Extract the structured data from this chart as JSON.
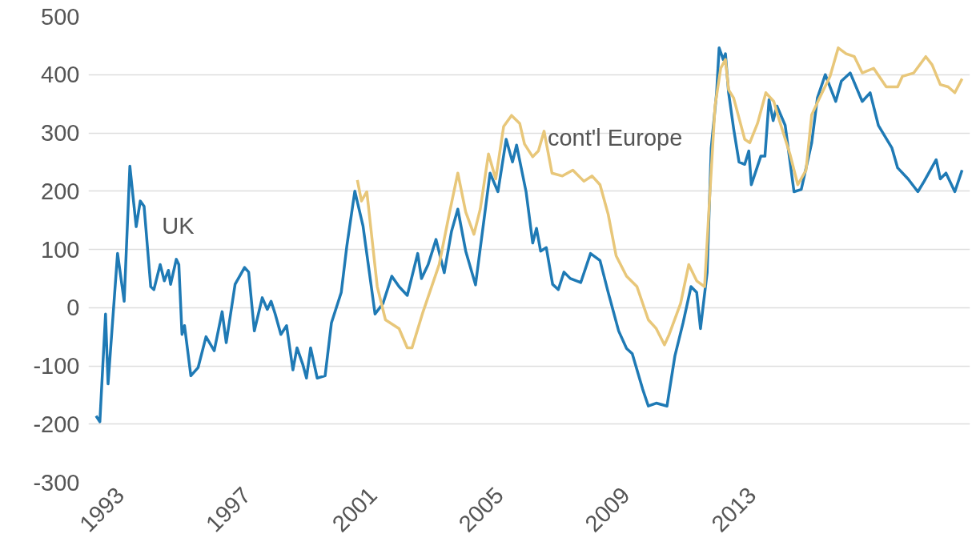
{
  "chart_data": {
    "type": "line",
    "xlim": [
      1992.0,
      2019.9
    ],
    "ylim": [
      -300,
      500
    ],
    "xticks": [
      1993,
      1997,
      2001,
      2005,
      2009,
      2013
    ],
    "yticks": [
      -300,
      -200,
      -100,
      0,
      100,
      200,
      300,
      400,
      500
    ],
    "grid": "y",
    "marker": "none",
    "line_style": "solid",
    "series": [
      {
        "name": "UK",
        "color": "#1f7ab5",
        "x": [
          1992.24,
          1992.36,
          1992.54,
          1992.62,
          1992.92,
          1993.13,
          1993.31,
          1993.51,
          1993.64,
          1993.76,
          1993.97,
          1994.07,
          1994.27,
          1994.4,
          1994.53,
          1994.6,
          1994.78,
          1994.86,
          1994.96,
          1995.04,
          1995.24,
          1995.47,
          1995.72,
          1995.98,
          1996.23,
          1996.36,
          1996.64,
          1996.94,
          1997.07,
          1997.25,
          1997.5,
          1997.66,
          1997.78,
          1997.91,
          1998.09,
          1998.27,
          1998.47,
          1998.6,
          1998.78,
          1998.9,
          1999.03,
          1999.24,
          1999.49,
          1999.69,
          2000.0,
          2000.18,
          2000.43,
          2000.69,
          2001.07,
          2001.32,
          2001.6,
          2001.83,
          2002.09,
          2002.42,
          2002.54,
          2002.75,
          2003.0,
          2003.26,
          2003.49,
          2003.69,
          2003.94,
          2004.25,
          2004.71,
          2004.96,
          2005.22,
          2005.42,
          2005.55,
          2005.85,
          2006.06,
          2006.18,
          2006.31,
          2006.49,
          2006.69,
          2006.87,
          2007.05,
          2007.25,
          2007.58,
          2007.89,
          2008.19,
          2008.45,
          2008.78,
          2009.03,
          2009.21,
          2009.54,
          2009.72,
          2009.97,
          2010.31,
          2010.56,
          2010.82,
          2011.07,
          2011.25,
          2011.37,
          2011.58,
          2011.71,
          2011.88,
          2011.96,
          2012.09,
          2012.16,
          2012.26,
          2012.42,
          2012.59,
          2012.77,
          2012.9,
          2012.98,
          2013.28,
          2013.41,
          2013.54,
          2013.67,
          2013.79,
          2014.05,
          2014.33,
          2014.56,
          2014.89,
          2015.07,
          2015.32,
          2015.65,
          2015.83,
          2016.11,
          2016.49,
          2016.74,
          2017.0,
          2017.43,
          2017.61,
          2017.94,
          2018.25,
          2018.45,
          2018.83,
          2018.96,
          2019.14,
          2019.42,
          2019.65
        ],
        "values": [
          -186,
          -196,
          -11,
          -131,
          93,
          11,
          243,
          139,
          183,
          174,
          36,
          31,
          74,
          46,
          64,
          40,
          83,
          74,
          -46,
          -31,
          -117,
          -103,
          -50,
          -74,
          -7,
          -60,
          40,
          69,
          61,
          -40,
          17,
          -3,
          11,
          -11,
          -46,
          -31,
          -107,
          -69,
          -97,
          -121,
          -69,
          -121,
          -117,
          -26,
          26,
          107,
          200,
          140,
          -11,
          7,
          54,
          36,
          21,
          93,
          50,
          74,
          117,
          60,
          131,
          169,
          97,
          39,
          231,
          199,
          289,
          250,
          279,
          199,
          111,
          136,
          97,
          103,
          40,
          31,
          61,
          50,
          43,
          93,
          81,
          26,
          -40,
          -70,
          -79,
          -140,
          -169,
          -164,
          -169,
          -83,
          -26,
          36,
          26,
          -36,
          60,
          274,
          369,
          446,
          426,
          436,
          369,
          307,
          250,
          246,
          269,
          211,
          260,
          260,
          357,
          321,
          346,
          313,
          199,
          203,
          283,
          360,
          400,
          354,
          389,
          403,
          354,
          369,
          313,
          274,
          240,
          221,
          199,
          217,
          254,
          221,
          231,
          199,
          236
        ]
      },
      {
        "name": "cont'l Europe",
        "color": "#e8c77a",
        "x": [
          2000.51,
          2000.64,
          2000.81,
          2001.14,
          2001.4,
          2001.83,
          2002.09,
          2002.24,
          2002.59,
          2003.1,
          2003.43,
          2003.69,
          2003.94,
          2004.2,
          2004.4,
          2004.66,
          2004.89,
          2005.14,
          2005.39,
          2005.65,
          2005.8,
          2006.06,
          2006.24,
          2006.42,
          2006.67,
          2007.0,
          2007.33,
          2007.68,
          2007.94,
          2008.19,
          2008.45,
          2008.7,
          2009.03,
          2009.36,
          2009.72,
          2009.97,
          2010.23,
          2010.38,
          2010.74,
          2011.0,
          2011.25,
          2011.5,
          2011.65,
          2011.83,
          2012.01,
          2012.16,
          2012.26,
          2012.42,
          2012.77,
          2012.93,
          2013.18,
          2013.44,
          2013.69,
          2013.87,
          2014.2,
          2014.45,
          2014.71,
          2014.89,
          2015.14,
          2015.47,
          2015.73,
          2015.98,
          2016.24,
          2016.49,
          2016.85,
          2017.25,
          2017.61,
          2017.76,
          2018.12,
          2018.5,
          2018.7,
          2018.96,
          2019.21,
          2019.42,
          2019.65
        ],
        "values": [
          219,
          183,
          199,
          36,
          -21,
          -36,
          -69,
          -69,
          -7,
          74,
          164,
          231,
          164,
          126,
          169,
          264,
          221,
          311,
          330,
          316,
          281,
          259,
          269,
          303,
          231,
          226,
          236,
          217,
          226,
          211,
          160,
          89,
          54,
          36,
          -21,
          -36,
          -64,
          -46,
          7,
          74,
          46,
          36,
          179,
          346,
          411,
          426,
          374,
          360,
          289,
          283,
          317,
          369,
          354,
          321,
          264,
          211,
          236,
          331,
          360,
          397,
          446,
          436,
          431,
          403,
          411,
          379,
          379,
          397,
          403,
          431,
          417,
          383,
          379,
          369,
          393
        ]
      }
    ]
  }
}
